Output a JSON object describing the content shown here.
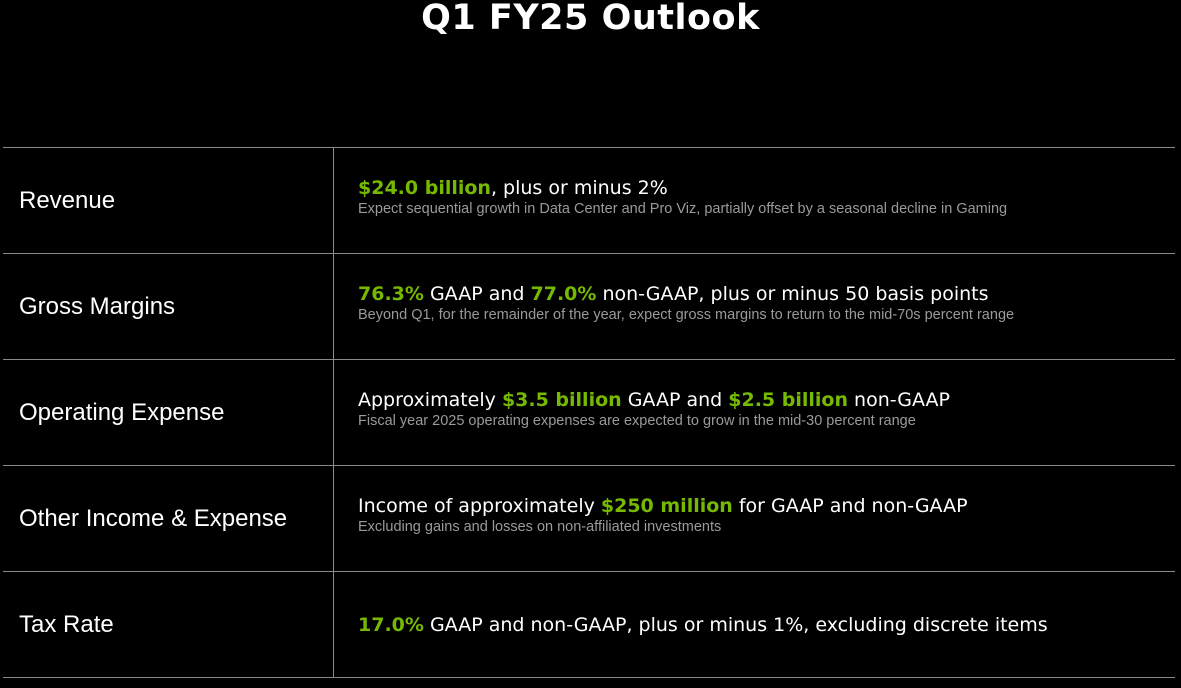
{
  "title": "Q1 FY25 Outlook",
  "colors": {
    "background": "#000000",
    "text": "#ffffff",
    "highlight": "#76b900",
    "subtext": "#9a9a9a",
    "divider": "#8a8a8a"
  },
  "rows": [
    {
      "label": "Revenue",
      "main": [
        {
          "text": "$24.0 billion",
          "highlight": true
        },
        {
          "text": ", plus or minus 2%",
          "highlight": false
        }
      ],
      "sub": "Expect sequential growth in Data Center and Pro Viz, partially offset by a seasonal decline in Gaming"
    },
    {
      "label": "Gross Margins",
      "main": [
        {
          "text": "76.3%",
          "highlight": true
        },
        {
          "text": " GAAP and ",
          "highlight": false
        },
        {
          "text": "77.0%",
          "highlight": true
        },
        {
          "text": " non-GAAP, plus or minus 50 basis points",
          "highlight": false
        }
      ],
      "sub": "Beyond Q1, for the remainder of the year, expect gross margins to return to the mid-70s percent range"
    },
    {
      "label": "Operating Expense",
      "main": [
        {
          "text": "Approximately ",
          "highlight": false
        },
        {
          "text": "$3.5 billion",
          "highlight": true
        },
        {
          "text": " GAAP and ",
          "highlight": false
        },
        {
          "text": "$2.5 billion",
          "highlight": true
        },
        {
          "text": " non-GAAP",
          "highlight": false
        }
      ],
      "sub": "Fiscal year 2025 operating expenses are expected to grow in the mid-30 percent range"
    },
    {
      "label": "Other Income & Expense",
      "main": [
        {
          "text": "Income of approximately ",
          "highlight": false
        },
        {
          "text": "$250 million",
          "highlight": true
        },
        {
          "text": " for GAAP and non-GAAP",
          "highlight": false
        }
      ],
      "sub": "Excluding gains and losses on non-affiliated investments"
    },
    {
      "label": "Tax Rate",
      "main": [
        {
          "text": "17.0%",
          "highlight": true
        },
        {
          "text": " GAAP and non-GAAP, plus or minus 1%, excluding discrete items",
          "highlight": false
        }
      ],
      "sub": ""
    }
  ]
}
